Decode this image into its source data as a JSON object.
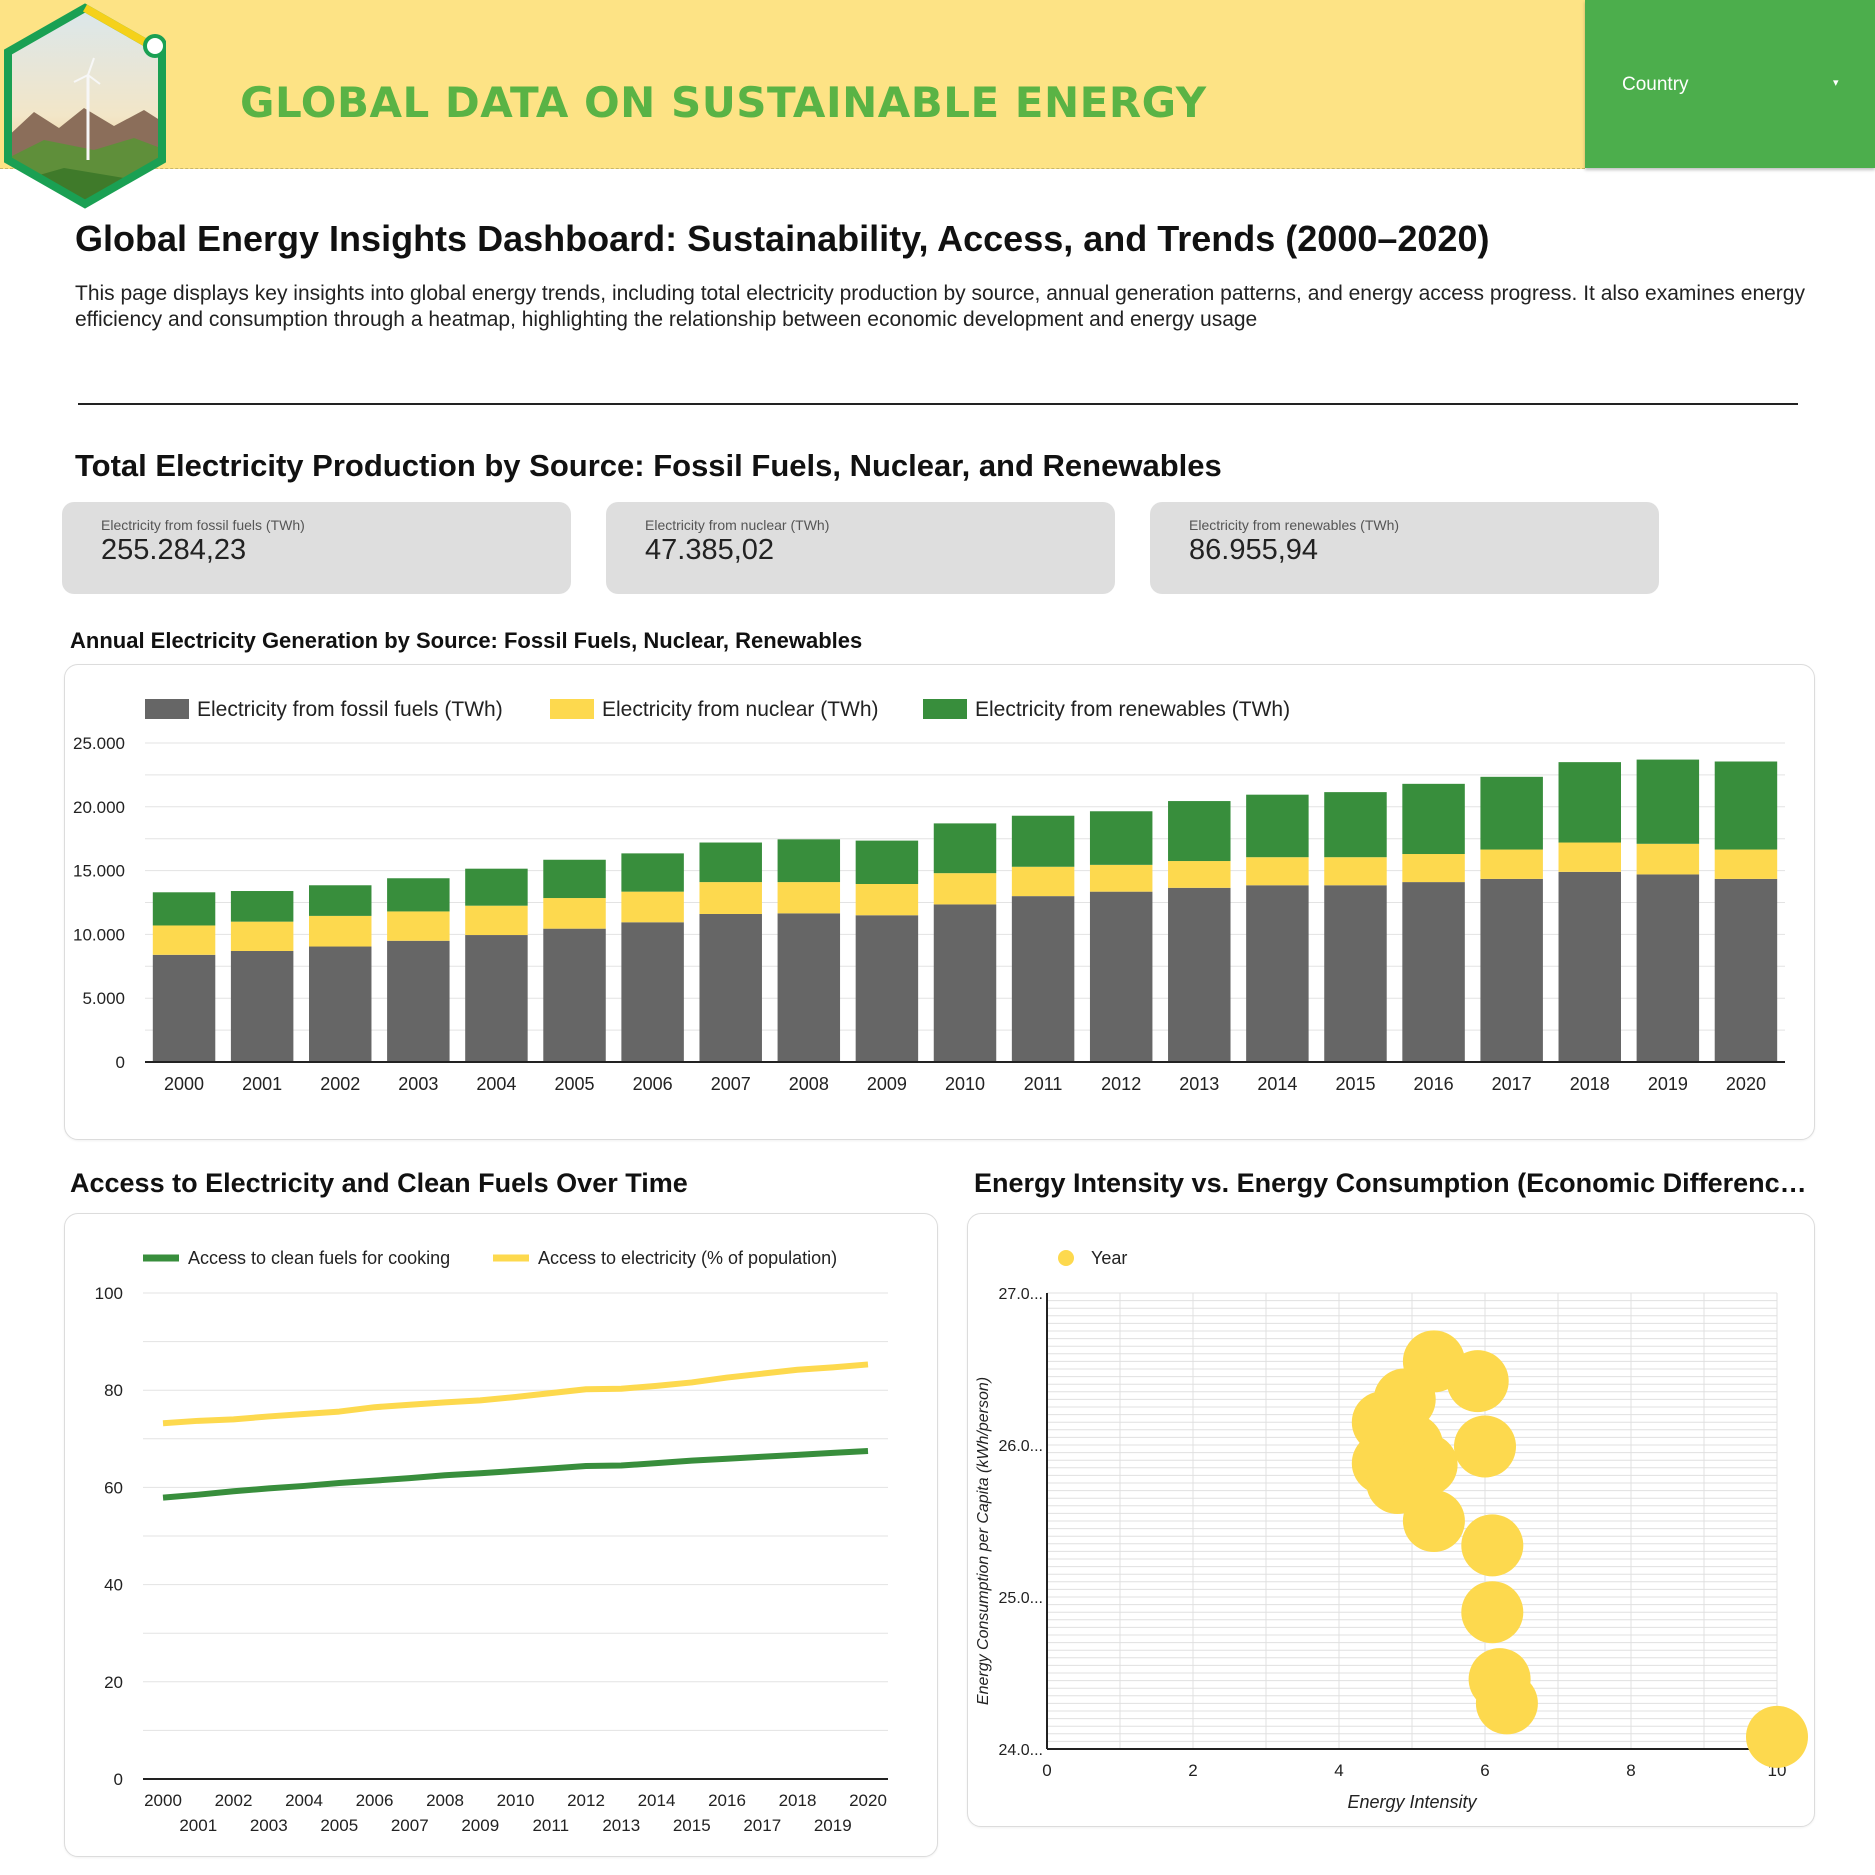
{
  "header": {
    "title": "GLOBAL DATA ON SUSTAINABLE ENERGY",
    "filter_label": "Country",
    "filter_caret": "▾"
  },
  "page": {
    "title": "Global Energy Insights Dashboard: Sustainability, Access, and Trends (2000–2020)",
    "description": "This page displays key insights into global energy trends, including total electricity production by source, annual generation patterns, and energy access progress. It also examines energy efficiency and consumption through a heatmap, highlighting the relationship between economic development and energy usage"
  },
  "sections": {
    "production": "Total Electricity Production by Source: Fossil Fuels, Nuclear, and Renewables",
    "annual": "Annual Electricity Generation by Source: Fossil Fuels, Nuclear, Renewables",
    "access": "Access to Electricity and Clean Fuels Over Time",
    "intensity": "Energy Intensity vs. Energy Consumption (Economic Differences ..."
  },
  "kpis": [
    {
      "label": "Electricity from fossil fuels (TWh)",
      "value": "255.284,23"
    },
    {
      "label": "Electricity from nuclear (TWh)",
      "value": "47.385,02"
    },
    {
      "label": "Electricity from renewables (TWh)",
      "value": "86.955,94"
    }
  ],
  "colors": {
    "fossil": "#666666",
    "nuclear": "#fdd94e",
    "renewables": "#388e3c",
    "clean_fuels_line": "#388e3c",
    "electricity_line": "#fdd94e",
    "bubble": "#fdd94e",
    "header_bg": "#fde385",
    "brand_green": "#5ab345",
    "filter_bg": "#4cae4c"
  },
  "chart_data": [
    {
      "type": "bar",
      "stacked": true,
      "categories": [
        "2000",
        "2001",
        "2002",
        "2003",
        "2004",
        "2005",
        "2006",
        "2007",
        "2008",
        "2009",
        "2010",
        "2011",
        "2012",
        "2013",
        "2014",
        "2015",
        "2016",
        "2017",
        "2018",
        "2019",
        "2020"
      ],
      "series": [
        {
          "name": "Electricity from fossil fuels (TWh)",
          "values": [
            8400,
            8700,
            9050,
            9500,
            9950,
            10450,
            10950,
            11600,
            11650,
            11500,
            12350,
            13000,
            13350,
            13650,
            13850,
            13850,
            14100,
            14350,
            14900,
            14700,
            14350
          ]
        },
        {
          "name": "Electricity from nuclear (TWh)",
          "values": [
            2300,
            2300,
            2400,
            2300,
            2300,
            2400,
            2400,
            2500,
            2450,
            2450,
            2450,
            2300,
            2100,
            2100,
            2200,
            2200,
            2200,
            2300,
            2300,
            2400,
            2300
          ]
        },
        {
          "name": "Electricity from renewables (TWh)",
          "values": [
            2600,
            2400,
            2400,
            2600,
            2900,
            3000,
            3000,
            3100,
            3350,
            3400,
            3900,
            4000,
            4200,
            4700,
            4900,
            5100,
            5500,
            5700,
            6300,
            6600,
            6900
          ]
        }
      ],
      "yticks": [
        "0",
        "5.000",
        "10.000",
        "15.000",
        "20.000",
        "25.000"
      ],
      "ylim": [
        0,
        25000
      ],
      "legend": "top-left",
      "grid": true
    },
    {
      "type": "line",
      "x": [
        "2000",
        "2001",
        "2002",
        "2003",
        "2004",
        "2005",
        "2006",
        "2007",
        "2008",
        "2009",
        "2010",
        "2011",
        "2012",
        "2013",
        "2014",
        "2015",
        "2016",
        "2017",
        "2018",
        "2019",
        "2020"
      ],
      "series": [
        {
          "name": "Access to clean fuels for cooking",
          "values": [
            57.9,
            58.5,
            59.2,
            59.8,
            60.3,
            60.9,
            61.4,
            61.9,
            62.5,
            62.9,
            63.4,
            63.9,
            64.4,
            64.5,
            65.0,
            65.5,
            65.9,
            66.3,
            66.7,
            67.1,
            67.5
          ]
        },
        {
          "name": "Access to electricity (% of population)",
          "values": [
            73.2,
            73.7,
            74.0,
            74.6,
            75.1,
            75.6,
            76.5,
            77.0,
            77.5,
            77.9,
            78.6,
            79.4,
            80.2,
            80.3,
            80.9,
            81.6,
            82.6,
            83.4,
            84.2,
            84.7,
            85.3
          ]
        }
      ],
      "yticks": [
        "0",
        "20",
        "40",
        "60",
        "80",
        "100"
      ],
      "ylim": [
        0,
        100
      ],
      "legend": "top-left",
      "grid": true
    },
    {
      "type": "scatter",
      "legend_label": "Year",
      "xlabel": "Energy Intensity",
      "ylabel": "Energy Consumption per Capita (kWh/person)",
      "xticks": [
        "0",
        "2",
        "4",
        "6",
        "8",
        "10"
      ],
      "yticks": [
        "24.0...",
        "25.0...",
        "26.0...",
        "27.0..."
      ],
      "xlim": [
        0,
        10
      ],
      "ylim": [
        24000,
        27000
      ],
      "points": [
        {
          "x": 5.3,
          "y": 26550
        },
        {
          "x": 5.9,
          "y": 26420
        },
        {
          "x": 4.9,
          "y": 26300
        },
        {
          "x": 4.6,
          "y": 26150
        },
        {
          "x": 5.0,
          "y": 26000
        },
        {
          "x": 6.0,
          "y": 25990
        },
        {
          "x": 4.6,
          "y": 25880
        },
        {
          "x": 5.2,
          "y": 25870
        },
        {
          "x": 4.8,
          "y": 25750
        },
        {
          "x": 5.3,
          "y": 25500
        },
        {
          "x": 6.1,
          "y": 25340
        },
        {
          "x": 6.1,
          "y": 24900
        },
        {
          "x": 6.2,
          "y": 24460
        },
        {
          "x": 6.3,
          "y": 24300
        },
        {
          "x": 10.0,
          "y": 24080
        }
      ],
      "grid": true
    }
  ]
}
